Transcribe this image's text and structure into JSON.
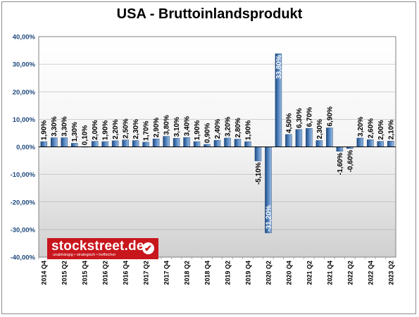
{
  "chart_data": {
    "type": "bar",
    "title": "USA - Bruttoinlandsprodukt",
    "categories": [
      "2014 Q4",
      "",
      "2015 Q2",
      "",
      "2015 Q4",
      "",
      "2016 Q2",
      "",
      "2016 Q4",
      "",
      "2017 Q2",
      "",
      "2017 Q4",
      "",
      "2018 Q2",
      "",
      "2018 Q4",
      "",
      "2019 Q2",
      "",
      "2019 Q4",
      "",
      "2020 Q2",
      "",
      "2020 Q4",
      "",
      "2021 Q2",
      "",
      "2021 Q4",
      "",
      "2022 Q2",
      "",
      "2022 Q4",
      "",
      "2023 Q2"
    ],
    "values": [
      1.9,
      3.3,
      3.3,
      1.3,
      0.1,
      2.0,
      1.9,
      2.2,
      2.5,
      2.3,
      1.7,
      2.9,
      3.8,
      3.1,
      3.4,
      1.9,
      0.9,
      2.4,
      3.2,
      2.8,
      1.9,
      -5.1,
      -31.2,
      33.8,
      4.5,
      6.3,
      6.7,
      2.3,
      6.9,
      -1.6,
      -0.6,
      3.2,
      2.6,
      2.0,
      2.1
    ],
    "data_labels": [
      "1,90%",
      "3,30%",
      "3,30%",
      "1,30%",
      "0,10%",
      "2,00%",
      "1,90%",
      "2,20%",
      "2,50%",
      "2,30%",
      "1,70%",
      "2,90%",
      "3,80%",
      "3,10%",
      "3,40%",
      "1,90%",
      "0,90%",
      "2,40%",
      "3,20%",
      "2,80%",
      "1,90%",
      "-5,10%",
      "-31,20%",
      "33,80%",
      "4,50%",
      "6,30%",
      "6,70%",
      "2,30%",
      "6,90%",
      "-1,60%",
      "-0,60%",
      "3,20%",
      "2,60%",
      "2,00%",
      "2,10%"
    ],
    "y_ticks": [
      40,
      30,
      20,
      10,
      0,
      -10,
      -20,
      -30,
      -40
    ],
    "y_tick_labels": [
      "40,00%",
      "30,00%",
      "20,00%",
      "10,00%",
      "0,00%",
      "-10,00%",
      "-20,00%",
      "-30,00%",
      "-40,00%"
    ],
    "ylim": [
      -40,
      40
    ],
    "xlabel": "",
    "ylabel": "",
    "grid": true,
    "legend": "none",
    "colors": {
      "bar": "#4f81bd",
      "bar_dark": "#1f497d",
      "axis_label": "#1f497d",
      "gridline": "#a6a6a6"
    }
  },
  "logo": {
    "name": "stockstreet.de",
    "tagline": "unabhängig • strategisch • treffsicher",
    "check": "✔",
    "color": "#c8161d"
  }
}
